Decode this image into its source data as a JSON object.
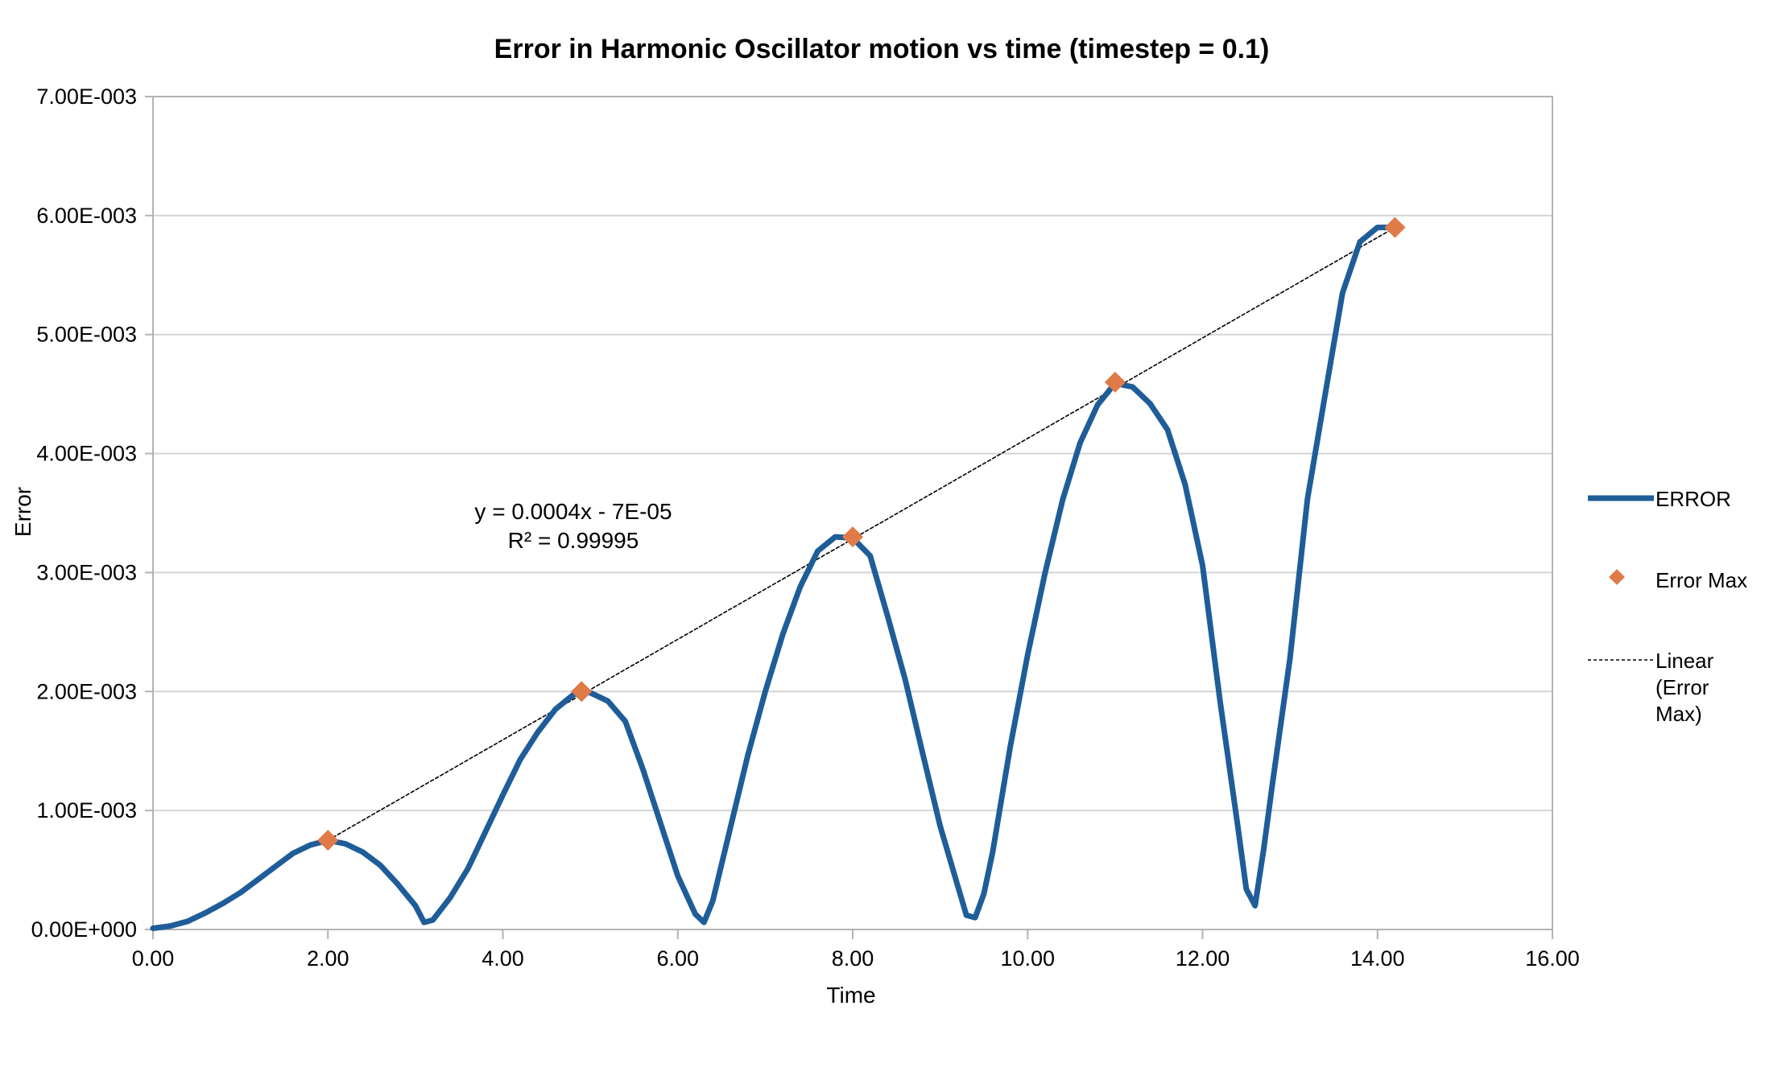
{
  "chart_data": {
    "type": "line",
    "title": "Error in Harmonic Oscillator motion vs time (timestep = 0.1)",
    "xlabel": "Time",
    "ylabel": "Error",
    "xlim": [
      0,
      16
    ],
    "ylim": [
      0,
      0.007
    ],
    "x_ticks": [
      "0.00",
      "2.00",
      "4.00",
      "6.00",
      "8.00",
      "10.00",
      "12.00",
      "14.00",
      "16.00"
    ],
    "y_ticks": [
      "0.00E+000",
      "1.00E-003",
      "2.00E-003",
      "3.00E-003",
      "4.00E-003",
      "5.00E-003",
      "6.00E-003",
      "7.00E-003"
    ],
    "grid": "horizontal",
    "legend_position": "right",
    "series": [
      {
        "name": "ERROR",
        "kind": "line",
        "color": "#1f5d99",
        "x": [
          0.0,
          0.2,
          0.4,
          0.6,
          0.8,
          1.0,
          1.2,
          1.4,
          1.6,
          1.8,
          2.0,
          2.2,
          2.4,
          2.6,
          2.8,
          3.0,
          3.1,
          3.2,
          3.4,
          3.6,
          3.8,
          4.0,
          4.2,
          4.4,
          4.6,
          4.8,
          4.9,
          5.0,
          5.2,
          5.4,
          5.6,
          5.8,
          6.0,
          6.2,
          6.3,
          6.4,
          6.6,
          6.8,
          7.0,
          7.2,
          7.4,
          7.6,
          7.8,
          8.0,
          8.2,
          8.4,
          8.6,
          8.8,
          9.0,
          9.2,
          9.3,
          9.4,
          9.5,
          9.6,
          9.8,
          10.0,
          10.2,
          10.4,
          10.6,
          10.8,
          11.0,
          11.2,
          11.4,
          11.6,
          11.8,
          12.0,
          12.2,
          12.4,
          12.5,
          12.6,
          12.7,
          12.8,
          13.0,
          13.2,
          13.4,
          13.6,
          13.8,
          14.0,
          14.1,
          14.2
        ],
        "y": [
          1e-05,
          3e-05,
          7e-05,
          0.00014,
          0.00022,
          0.00031,
          0.00042,
          0.00053,
          0.00064,
          0.00071,
          0.00075,
          0.00072,
          0.00065,
          0.00054,
          0.00038,
          0.0002,
          6e-05,
          8e-05,
          0.00027,
          0.00051,
          0.00082,
          0.00113,
          0.00143,
          0.00166,
          0.00185,
          0.00197,
          0.002,
          0.00199,
          0.00192,
          0.00175,
          0.00135,
          0.0009,
          0.00045,
          0.00013,
          6e-05,
          0.00024,
          0.00085,
          0.00146,
          0.002,
          0.00248,
          0.00288,
          0.00318,
          0.0033,
          0.00329,
          0.00314,
          0.00263,
          0.0021,
          0.00148,
          0.00087,
          0.00037,
          0.00012,
          0.0001,
          0.0003,
          0.00065,
          0.00153,
          0.00231,
          0.003,
          0.00361,
          0.00409,
          0.00441,
          0.00459,
          0.00456,
          0.00442,
          0.0042,
          0.00374,
          0.00306,
          0.00192,
          0.00088,
          0.00034,
          0.0002,
          0.00068,
          0.00123,
          0.00228,
          0.00362,
          0.00449,
          0.00535,
          0.00578,
          0.0059,
          0.0059,
          0.0059
        ]
      },
      {
        "name": "Error Max",
        "kind": "markers",
        "color": "#e07a47",
        "x": [
          2.0,
          4.9,
          8.0,
          11.0,
          14.2
        ],
        "y": [
          0.00075,
          0.002,
          0.0033,
          0.0046,
          0.0059
        ]
      },
      {
        "name": "Linear (Error Max)",
        "kind": "trendline",
        "color": "#000000",
        "x": [
          2.0,
          14.2
        ],
        "y": [
          0.00075,
          0.0059
        ]
      }
    ],
    "legend": [
      "ERROR",
      "Error Max",
      "Linear (Error Max)"
    ],
    "annotation": {
      "equation": "y = 0.0004x - 7E-05",
      "r_squared": "R² = 0.99995"
    }
  },
  "legend_labels": {
    "error": "ERROR",
    "error_max": "Error Max",
    "linear_line1": "Linear",
    "linear_line2": "(Error",
    "linear_line3": "Max)"
  }
}
